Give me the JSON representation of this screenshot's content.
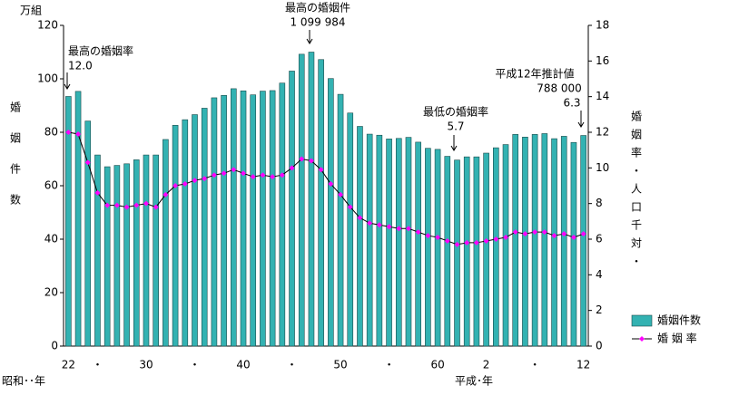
{
  "chart_data": {
    "type": "bar_line",
    "categories": [
      "22",
      null,
      null,
      "・",
      null,
      null,
      null,
      null,
      "30",
      null,
      null,
      null,
      null,
      "・",
      null,
      null,
      null,
      null,
      "40",
      null,
      null,
      null,
      null,
      "・",
      null,
      null,
      null,
      null,
      "50",
      null,
      null,
      null,
      null,
      "・",
      null,
      null,
      null,
      null,
      "60",
      null,
      null,
      null,
      null,
      "2",
      null,
      null,
      null,
      null,
      "・",
      null,
      null,
      null,
      null,
      "12"
    ],
    "era_labels": [
      "昭和･･年",
      "平成･年"
    ],
    "series": [
      {
        "name": "婚姻件数",
        "color": "#33b2b2",
        "axis": "y",
        "values": [
          93.4,
          95.3,
          84.2,
          71.5,
          67.1,
          67.6,
          68.2,
          69.7,
          71.5,
          71.5,
          77.3,
          82.6,
          84.7,
          86.6,
          89.0,
          92.9,
          93.8,
          96.3,
          95.5,
          94.0,
          95.4,
          95.6,
          98.4,
          102.9,
          109.2,
          110.0,
          107.2,
          100.1,
          94.2,
          87.2,
          82.2,
          79.3,
          78.9,
          77.5,
          77.7,
          78.1,
          76.3,
          74.0,
          73.6,
          71.0,
          69.6,
          70.8,
          70.8,
          72.2,
          74.2,
          75.4,
          79.2,
          78.2,
          79.2,
          79.5,
          77.6,
          78.5,
          76.2,
          78.8
        ]
      },
      {
        "name": "婚 姻 率",
        "color": "#000000",
        "marker_color": "#ff00ff",
        "axis": "y2",
        "values": [
          12.0,
          11.9,
          10.3,
          8.6,
          7.9,
          7.9,
          7.8,
          7.9,
          8.0,
          7.8,
          8.5,
          9.0,
          9.1,
          9.3,
          9.4,
          9.6,
          9.7,
          9.9,
          9.7,
          9.5,
          9.6,
          9.5,
          9.6,
          10.0,
          10.5,
          10.4,
          9.9,
          9.1,
          8.5,
          7.8,
          7.2,
          6.9,
          6.8,
          6.7,
          6.6,
          6.6,
          6.4,
          6.2,
          6.1,
          5.9,
          5.7,
          5.8,
          5.8,
          5.9,
          6.0,
          6.1,
          6.4,
          6.3,
          6.4,
          6.4,
          6.2,
          6.3,
          6.1,
          6.3
        ]
      }
    ],
    "y_unit": "万組",
    "y_label": "婚姻件数",
    "y2_label": "婚姻率・人口千対・",
    "ylim": [
      0,
      120
    ],
    "yticks": [
      0,
      20,
      40,
      60,
      80,
      100,
      120
    ],
    "y2lim": [
      0,
      18
    ],
    "y2ticks": [
      0,
      2,
      4,
      6,
      8,
      10,
      12,
      14,
      16,
      18
    ],
    "legend": "bottom-right",
    "annotations": [
      {
        "lines": [
          "最高の婚姻率",
          "12.0"
        ]
      },
      {
        "lines": [
          "最高の婚姻件",
          "1 099 984"
        ]
      },
      {
        "lines": [
          "最低の婚姻率",
          "5.7"
        ]
      },
      {
        "lines": [
          "平成12年推計値",
          "788 000",
          "6.3"
        ]
      }
    ]
  }
}
